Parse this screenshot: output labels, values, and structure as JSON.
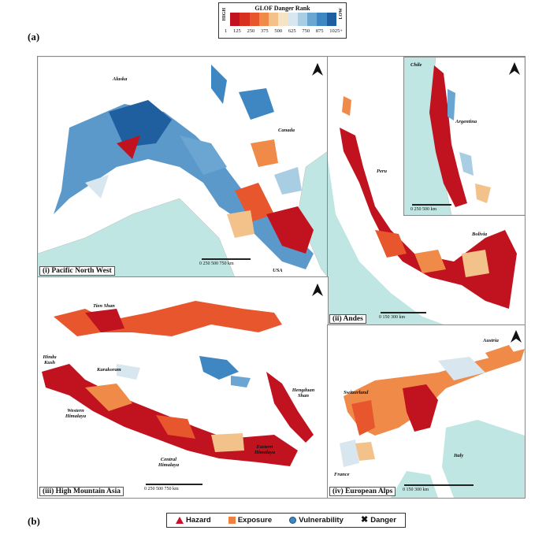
{
  "figure_labels": {
    "a": "(a)",
    "b": "(b)"
  },
  "legend": {
    "title": "GLOF Danger Rank",
    "high": "HIGH",
    "low": "LOW",
    "colors": [
      "#c1121f",
      "#d7301f",
      "#e8562d",
      "#f08a49",
      "#f3c28a",
      "#f6e3c6",
      "#d7e6ef",
      "#a9cde2",
      "#6aa6d1",
      "#3f87c2",
      "#1f5f9f"
    ],
    "ticks": [
      "1",
      "125",
      "250",
      "375",
      "500",
      "625",
      "750",
      "875",
      "1025+"
    ]
  },
  "panels": {
    "pnw": {
      "title": "(i) Pacific North West",
      "labels": {
        "alaska": "Alaska",
        "canada": "Canada",
        "usa": "USA"
      },
      "scale": "0    250   500   750 km"
    },
    "andes": {
      "title": "(ii) Andes",
      "labels": {
        "peru": "Peru",
        "bolivia": "Bolivia",
        "chile": "Chile",
        "argentina": "Argentina"
      },
      "scale": "0     150     300 km",
      "inset_scale": "0    250    500 km"
    },
    "hma": {
      "title": "(iii) High Mountain Asia",
      "labels": {
        "tienshan": "Tien Shan",
        "hindukush": "Hindu Kush",
        "karakoram": "Karakoram",
        "westernhimalaya": "Western Himalaya",
        "centralhimalaya": "Central Himalaya",
        "easternhimalaya": "Eastern Himalaya",
        "hengduan": "Hengduan Shan"
      },
      "scale": "0    250    500    750 km"
    },
    "alps": {
      "title": "(iv) European Alps",
      "labels": {
        "austria": "Austria",
        "switzerland": "Switzerland",
        "italy": "Italy",
        "france": "France"
      },
      "scale": "0         150        300 km"
    }
  },
  "bottom_legend": {
    "hazard": "Hazard",
    "exposure": "Exposure",
    "vulnerability": "Vulnerability",
    "danger": "Danger",
    "hazard_color": "#c8102e",
    "exposure_color": "#ee8140",
    "vulnerability_color": "#3f87c2"
  }
}
